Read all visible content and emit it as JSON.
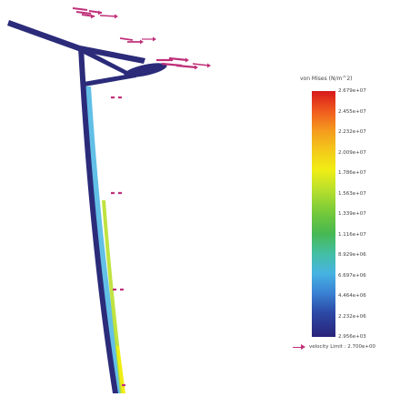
{
  "legend": {
    "title": "von Mises (N/m^2)",
    "ticks": [
      "2.679e+07",
      "2.455e+07",
      "2.232e+07",
      "2.009e+07",
      "1.786e+07",
      "1.563e+07",
      "1.339e+07",
      "1.116e+07",
      "8.929e+06",
      "6.697e+06",
      "4.464e+06",
      "2.232e+06",
      "2.956e+03"
    ]
  },
  "velocity_legend": {
    "text": "velocity  Limit : 2.700e+00"
  },
  "colors": {
    "structure": "#2b2b7a",
    "stress_high": "#f0ee14",
    "stress_mid": "#47b4e2",
    "vector": "#c0307a"
  }
}
